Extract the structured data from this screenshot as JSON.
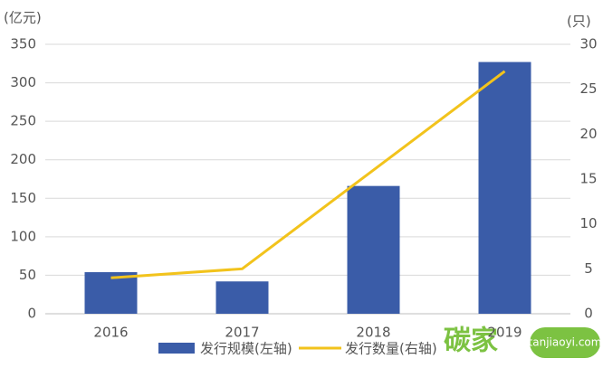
{
  "chart_data": {
    "type": "bar",
    "y_unit": "(亿元)",
    "y2_unit": "(只)",
    "categories": [
      "2016",
      "2017",
      "2018",
      "2019"
    ],
    "series": [
      {
        "name": "发行规模(左轴)",
        "type": "bar",
        "color": "#3a5ca8",
        "values": [
          54,
          42,
          166,
          327
        ]
      },
      {
        "name": "发行数量(右轴)",
        "type": "line",
        "axis": "y2",
        "color": "#f2c31c",
        "values": [
          4,
          5,
          16,
          27
        ]
      }
    ],
    "ylim": [
      0,
      350
    ],
    "yticks": [
      0,
      50,
      100,
      150,
      200,
      250,
      300,
      350
    ],
    "y2lim": [
      0,
      30
    ],
    "y2ticks": [
      0,
      5,
      10,
      15,
      20,
      25,
      30
    ],
    "grid": true,
    "watermark": [
      "碳家",
      "tanjiaoyi.com"
    ]
  }
}
